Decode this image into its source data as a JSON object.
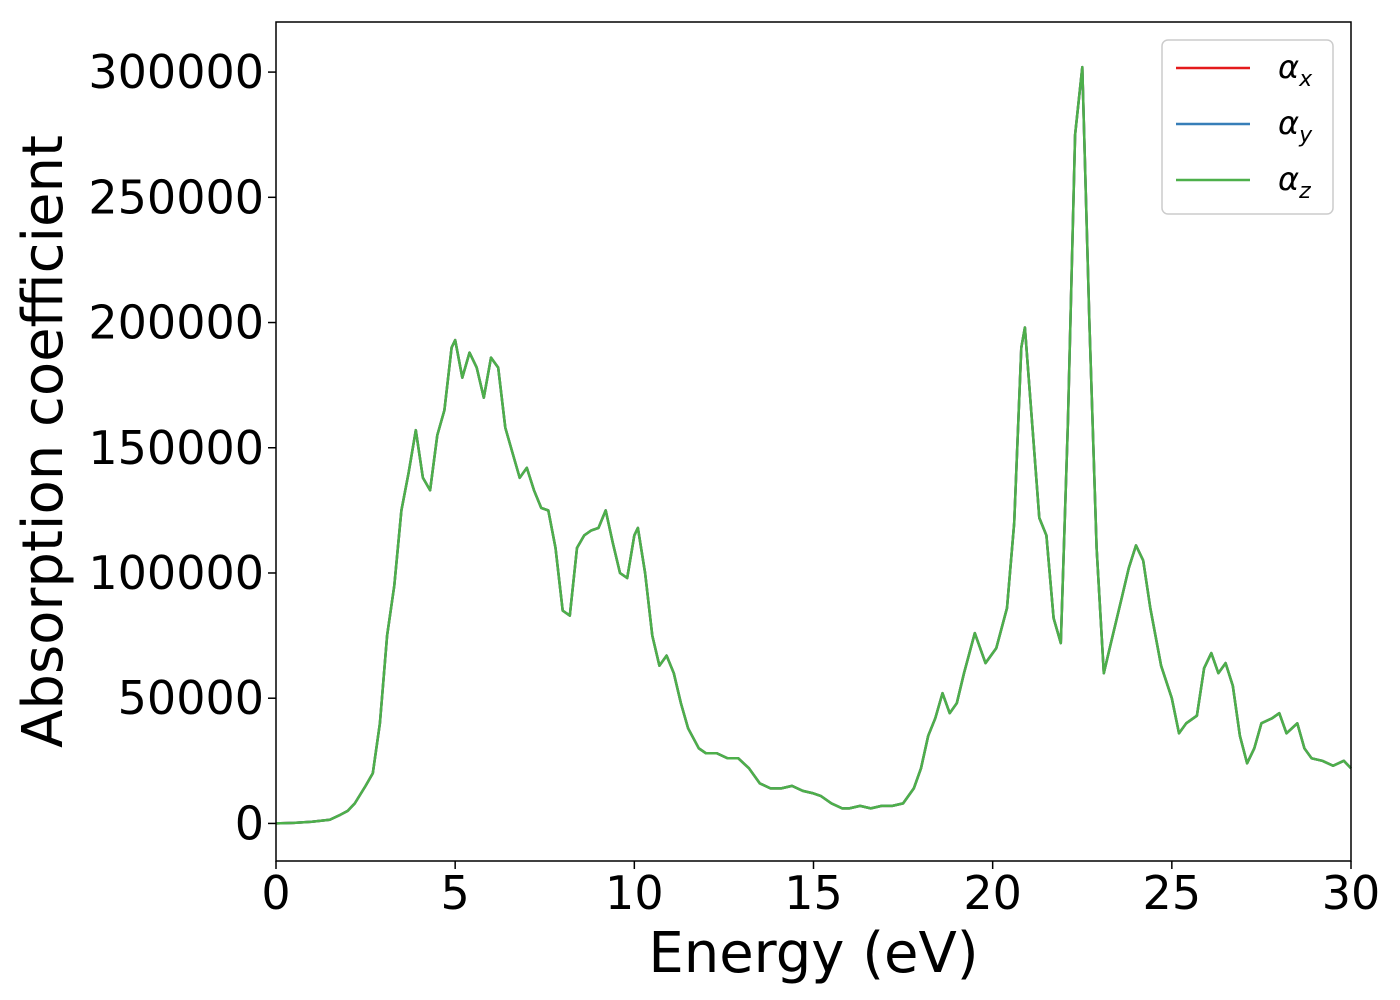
{
  "chart_data": {
    "type": "line",
    "xlabel": "Energy (eV)",
    "ylabel": "Absorption coefficient",
    "xlim": [
      0,
      30
    ],
    "ylim": [
      -15000,
      320000
    ],
    "xticks": [
      0,
      5,
      10,
      15,
      20,
      25,
      30
    ],
    "xtick_labels": [
      "0",
      "5",
      "10",
      "15",
      "20",
      "25",
      "30"
    ],
    "yticks": [
      0,
      50000,
      100000,
      150000,
      200000,
      250000,
      300000
    ],
    "ytick_labels": [
      "0",
      "50000",
      "100000",
      "150000",
      "200000",
      "250000",
      "300000"
    ],
    "grid": false,
    "legend_position": "top-right",
    "x": [
      0,
      0.5,
      1.0,
      1.5,
      1.8,
      2.0,
      2.2,
      2.5,
      2.7,
      2.9,
      3.1,
      3.3,
      3.5,
      3.7,
      3.9,
      4.1,
      4.3,
      4.5,
      4.7,
      4.9,
      5.0,
      5.2,
      5.4,
      5.6,
      5.8,
      6.0,
      6.2,
      6.4,
      6.6,
      6.8,
      7.0,
      7.2,
      7.4,
      7.6,
      7.8,
      8.0,
      8.2,
      8.4,
      8.6,
      8.8,
      9.0,
      9.2,
      9.4,
      9.6,
      9.8,
      10.0,
      10.1,
      10.3,
      10.5,
      10.7,
      10.9,
      11.1,
      11.3,
      11.5,
      11.8,
      12.0,
      12.3,
      12.6,
      12.9,
      13.2,
      13.5,
      13.8,
      14.1,
      14.4,
      14.7,
      15.0,
      15.2,
      15.5,
      15.8,
      16.0,
      16.3,
      16.6,
      16.9,
      17.2,
      17.5,
      17.8,
      18.0,
      18.2,
      18.4,
      18.6,
      18.8,
      19.0,
      19.2,
      19.5,
      19.8,
      20.1,
      20.4,
      20.6,
      20.8,
      20.9,
      21.1,
      21.3,
      21.5,
      21.7,
      21.9,
      22.1,
      22.3,
      22.5,
      22.7,
      22.9,
      23.1,
      23.3,
      23.6,
      23.8,
      24.0,
      24.2,
      24.4,
      24.7,
      25.0,
      25.2,
      25.4,
      25.7,
      25.9,
      26.1,
      26.3,
      26.5,
      26.7,
      26.9,
      27.1,
      27.3,
      27.5,
      27.8,
      28.0,
      28.2,
      28.5,
      28.7,
      28.9,
      29.2,
      29.5,
      29.8,
      30.0
    ],
    "series": [
      {
        "name": "α_x",
        "color": "#e41a1c",
        "values": [
          0,
          200,
          700,
          1500,
          3500,
          5000,
          8000,
          15000,
          20000,
          40000,
          75000,
          95000,
          125000,
          140000,
          157000,
          138000,
          133000,
          155000,
          165000,
          190000,
          193000,
          178000,
          188000,
          182000,
          170000,
          186000,
          182000,
          158000,
          148000,
          138000,
          142000,
          133000,
          126000,
          125000,
          110000,
          85000,
          83000,
          110000,
          115000,
          117000,
          118000,
          125000,
          112000,
          100000,
          98000,
          115000,
          118000,
          100000,
          75000,
          63000,
          67000,
          60000,
          48000,
          38000,
          30000,
          28000,
          28000,
          26000,
          26000,
          22000,
          16000,
          14000,
          14000,
          15000,
          13000,
          12000,
          11000,
          8000,
          6000,
          6000,
          7000,
          6000,
          7000,
          7000,
          8000,
          14000,
          22000,
          35000,
          42000,
          52000,
          44000,
          48000,
          60000,
          76000,
          64000,
          70000,
          86000,
          120000,
          190000,
          198000,
          160000,
          122000,
          115000,
          82000,
          72000,
          160000,
          275000,
          302000,
          200000,
          110000,
          60000,
          72000,
          90000,
          102000,
          111000,
          105000,
          86000,
          63000,
          50000,
          36000,
          40000,
          43000,
          62000,
          68000,
          60000,
          64000,
          55000,
          35000,
          24000,
          30000,
          40000,
          42000,
          44000,
          36000,
          40000,
          30000,
          26000,
          25000,
          23000,
          25000,
          22000
        ]
      },
      {
        "name": "α_y",
        "color": "#377eb8",
        "values": [
          0,
          200,
          700,
          1500,
          3500,
          5000,
          8000,
          15000,
          20000,
          40000,
          75000,
          95000,
          125000,
          140000,
          157000,
          138000,
          133000,
          155000,
          165000,
          190000,
          193000,
          178000,
          188000,
          182000,
          170000,
          186000,
          182000,
          158000,
          148000,
          138000,
          142000,
          133000,
          126000,
          125000,
          110000,
          85000,
          83000,
          110000,
          115000,
          117000,
          118000,
          125000,
          112000,
          100000,
          98000,
          115000,
          118000,
          100000,
          75000,
          63000,
          67000,
          60000,
          48000,
          38000,
          30000,
          28000,
          28000,
          26000,
          26000,
          22000,
          16000,
          14000,
          14000,
          15000,
          13000,
          12000,
          11000,
          8000,
          6000,
          6000,
          7000,
          6000,
          7000,
          7000,
          8000,
          14000,
          22000,
          35000,
          42000,
          52000,
          44000,
          48000,
          60000,
          76000,
          64000,
          70000,
          86000,
          120000,
          190000,
          198000,
          160000,
          122000,
          115000,
          82000,
          72000,
          160000,
          275000,
          302000,
          200000,
          110000,
          60000,
          72000,
          90000,
          102000,
          111000,
          105000,
          86000,
          63000,
          50000,
          36000,
          40000,
          43000,
          62000,
          68000,
          60000,
          64000,
          55000,
          35000,
          24000,
          30000,
          40000,
          42000,
          44000,
          36000,
          40000,
          30000,
          26000,
          25000,
          23000,
          25000,
          22000
        ]
      },
      {
        "name": "α_z",
        "color": "#4daf4a",
        "values": [
          0,
          200,
          700,
          1500,
          3500,
          5000,
          8000,
          15000,
          20000,
          40000,
          75000,
          95000,
          125000,
          140000,
          157000,
          138000,
          133000,
          155000,
          165000,
          190000,
          193000,
          178000,
          188000,
          182000,
          170000,
          186000,
          182000,
          158000,
          148000,
          138000,
          142000,
          133000,
          126000,
          125000,
          110000,
          85000,
          83000,
          110000,
          115000,
          117000,
          118000,
          125000,
          112000,
          100000,
          98000,
          115000,
          118000,
          100000,
          75000,
          63000,
          67000,
          60000,
          48000,
          38000,
          30000,
          28000,
          28000,
          26000,
          26000,
          22000,
          16000,
          14000,
          14000,
          15000,
          13000,
          12000,
          11000,
          8000,
          6000,
          6000,
          7000,
          6000,
          7000,
          7000,
          8000,
          14000,
          22000,
          35000,
          42000,
          52000,
          44000,
          48000,
          60000,
          76000,
          64000,
          70000,
          86000,
          120000,
          190000,
          198000,
          160000,
          122000,
          115000,
          82000,
          72000,
          160000,
          275000,
          302000,
          200000,
          110000,
          60000,
          72000,
          90000,
          102000,
          111000,
          105000,
          86000,
          63000,
          50000,
          36000,
          40000,
          43000,
          62000,
          68000,
          60000,
          64000,
          55000,
          35000,
          24000,
          30000,
          40000,
          42000,
          44000,
          36000,
          40000,
          30000,
          26000,
          25000,
          23000,
          25000,
          22000
        ]
      }
    ],
    "legend": [
      {
        "symbol": "α",
        "subscript": "x"
      },
      {
        "symbol": "α",
        "subscript": "y"
      },
      {
        "symbol": "α",
        "subscript": "z"
      }
    ]
  }
}
